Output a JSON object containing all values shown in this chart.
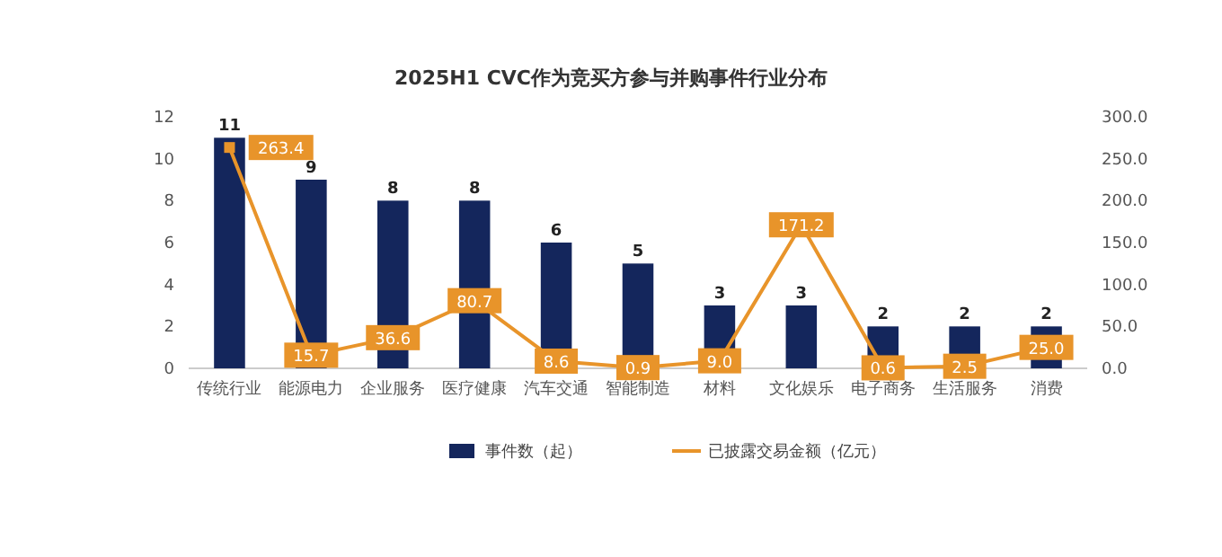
{
  "chart_data": {
    "type": "bar",
    "title": "2025H1 CVC作为竞买方参与并购事件行业分布",
    "categories": [
      "传统行业",
      "能源电力",
      "企业服务",
      "医疗健康",
      "汽车交通",
      "智能制造",
      "材料",
      "文化娱乐",
      "电子商务",
      "生活服务",
      "消费"
    ],
    "series": [
      {
        "name": "事件数（起）",
        "color": "#14265c",
        "values": [
          11,
          9,
          8,
          8,
          6,
          5,
          3,
          3,
          2,
          2,
          2
        ],
        "value_labels": [
          "11",
          "9",
          "8",
          "8",
          "6",
          "5",
          "3",
          "3",
          "2",
          "2",
          "2"
        ]
      },
      {
        "name": "已披露交易金额（亿元）",
        "type": "line",
        "axis": "y2",
        "color": "#e8942a",
        "values": [
          263.4,
          15.7,
          36.6,
          80.7,
          8.6,
          0.9,
          9.0,
          171.2,
          0.6,
          2.5,
          25.0
        ],
        "value_labels": [
          "263.4",
          "15.7",
          "36.6",
          "80.7",
          "8.6",
          "0.9",
          "9.0",
          "171.2",
          "0.6",
          "2.5",
          "25.0"
        ]
      }
    ],
    "ylim": [
      0,
      12
    ],
    "yticks": [
      0,
      2,
      4,
      6,
      8,
      10,
      12
    ],
    "y2lim": [
      0,
      300
    ],
    "y2ticks": [
      {
        "value": 0,
        "label": "0.0"
      },
      {
        "value": 50,
        "label": "50.0"
      },
      {
        "value": 100,
        "label": "100.0"
      },
      {
        "value": 150,
        "label": "150.0"
      },
      {
        "value": 200,
        "label": "200.0"
      },
      {
        "value": 250,
        "label": "250.0"
      },
      {
        "value": 300,
        "label": "300.0"
      }
    ],
    "legend": "bottom",
    "marker": "square",
    "line_style": "solid"
  }
}
